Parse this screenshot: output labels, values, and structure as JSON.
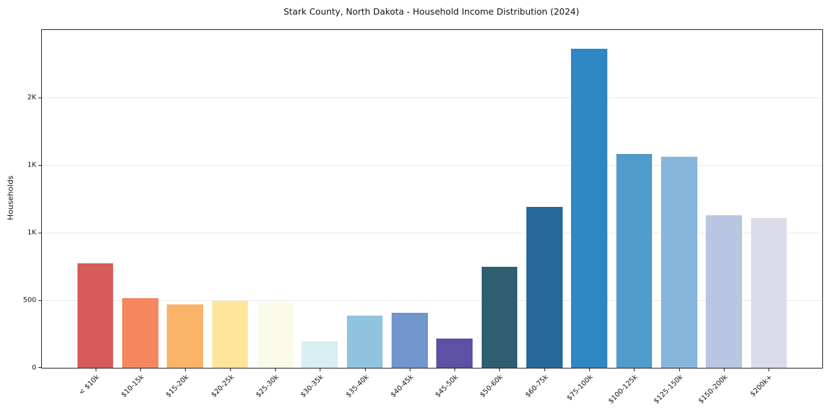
{
  "chart_data": {
    "type": "bar",
    "title": "Stark County, North Dakota - Household Income Distribution (2024)",
    "xlabel": "",
    "ylabel": "Households",
    "ylim": [
      0,
      2500
    ],
    "grid": true,
    "legend": false,
    "background": "#ffffff",
    "y_ticks": [
      {
        "value": 0,
        "label": "0"
      },
      {
        "value": 500,
        "label": "500"
      },
      {
        "value": 1000,
        "label": "1K"
      },
      {
        "value": 1500,
        "label": "1K"
      },
      {
        "value": 2000,
        "label": "2K"
      }
    ],
    "categories": [
      "< $10k",
      "$10-15k",
      "$15-20k",
      "$20-25k",
      "$25-30k",
      "$30-35k",
      "$35-40k",
      "$40-45k",
      "$45-50k",
      "$50-60k",
      "$60-75k",
      "$75-100k",
      "$100-125k",
      "$125-150k",
      "$150-200k",
      "$200k+"
    ],
    "values": [
      775,
      515,
      470,
      495,
      485,
      195,
      385,
      405,
      215,
      750,
      1190,
      2360,
      1585,
      1560,
      1130,
      1110
    ],
    "bar_colors": [
      "#d65c5c",
      "#f4875e",
      "#fbb269",
      "#fde59a",
      "#fafce9",
      "#d7eef3",
      "#90c3de",
      "#7295ce",
      "#5c51a4",
      "#2f5e71",
      "#27689b",
      "#2f87c3",
      "#4f9ccb",
      "#86b6db",
      "#b8c6e2",
      "#dadae9"
    ]
  }
}
